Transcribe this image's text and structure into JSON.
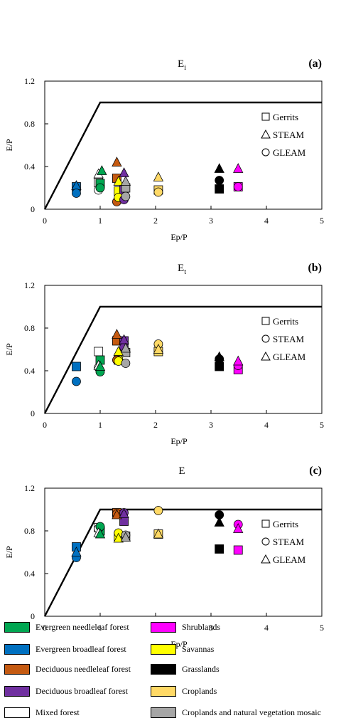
{
  "chart_data": [
    {
      "type": "scatter",
      "title": "Ei",
      "title_main": "E",
      "title_sub": "i",
      "panel_label": "(a)",
      "xlabel": "Ep/P",
      "ylabel": "E/P",
      "xlim": [
        0,
        5
      ],
      "ylim": [
        0,
        1.2
      ],
      "xticks": [
        "0",
        "1",
        "2",
        "3",
        "4",
        "5"
      ],
      "yticks": [
        "0",
        "0.4",
        "0.8",
        "1.2"
      ],
      "legend": [
        "Gerrits",
        "STEAM",
        "GLEAM"
      ],
      "legend_markers": [
        "square",
        "triangle",
        "circle"
      ],
      "series": [
        {
          "name": "Gerrits",
          "marker": "square",
          "points": [
            {
              "x": 0.57,
              "y": 0.21,
              "cover": "ebf"
            },
            {
              "x": 0.97,
              "y": 0.25,
              "cover": "mf"
            },
            {
              "x": 1.0,
              "y": 0.24,
              "cover": "enf"
            },
            {
              "x": 1.3,
              "y": 0.29,
              "cover": "dnf"
            },
            {
              "x": 1.33,
              "y": 0.17,
              "cover": "sav"
            },
            {
              "x": 1.43,
              "y": 0.18,
              "cover": "dbf"
            },
            {
              "x": 1.46,
              "y": 0.2,
              "cover": "cnv"
            },
            {
              "x": 2.05,
              "y": 0.18,
              "cover": "crop"
            },
            {
              "x": 3.15,
              "y": 0.19,
              "cover": "grass"
            },
            {
              "x": 3.49,
              "y": 0.21,
              "cover": "shrub"
            }
          ]
        },
        {
          "name": "STEAM",
          "marker": "triangle",
          "points": [
            {
              "x": 0.57,
              "y": 0.22,
              "cover": "ebf"
            },
            {
              "x": 0.97,
              "y": 0.33,
              "cover": "mf"
            },
            {
              "x": 1.03,
              "y": 0.36,
              "cover": "enf"
            },
            {
              "x": 1.3,
              "y": 0.44,
              "cover": "dnf"
            },
            {
              "x": 1.33,
              "y": 0.26,
              "cover": "sav"
            },
            {
              "x": 1.43,
              "y": 0.34,
              "cover": "dbf"
            },
            {
              "x": 1.46,
              "y": 0.26,
              "cover": "cnv"
            },
            {
              "x": 2.05,
              "y": 0.3,
              "cover": "crop"
            },
            {
              "x": 3.15,
              "y": 0.38,
              "cover": "grass"
            },
            {
              "x": 3.49,
              "y": 0.38,
              "cover": "shrub"
            }
          ]
        },
        {
          "name": "GLEAM",
          "marker": "circle",
          "points": [
            {
              "x": 0.57,
              "y": 0.15,
              "cover": "ebf"
            },
            {
              "x": 0.97,
              "y": 0.18,
              "cover": "mf"
            },
            {
              "x": 1.0,
              "y": 0.2,
              "cover": "enf"
            },
            {
              "x": 1.3,
              "y": 0.07,
              "cover": "dnf"
            },
            {
              "x": 1.33,
              "y": 0.11,
              "cover": "sav"
            },
            {
              "x": 1.43,
              "y": 0.09,
              "cover": "dbf"
            },
            {
              "x": 1.46,
              "y": 0.12,
              "cover": "cnv"
            },
            {
              "x": 2.05,
              "y": 0.16,
              "cover": "crop"
            },
            {
              "x": 3.15,
              "y": 0.27,
              "cover": "grass"
            },
            {
              "x": 3.49,
              "y": 0.21,
              "cover": "shrub"
            }
          ]
        }
      ],
      "budyko_line": [
        [
          0,
          0
        ],
        [
          1,
          1
        ],
        [
          5,
          1
        ]
      ]
    },
    {
      "type": "scatter",
      "title": "Et",
      "title_main": "E",
      "title_sub": "t",
      "panel_label": "(b)",
      "xlabel": "Ep/P",
      "ylabel": "E/P",
      "xlim": [
        0,
        5
      ],
      "ylim": [
        0,
        1.2
      ],
      "xticks": [
        "0",
        "1",
        "2",
        "3",
        "4",
        "5"
      ],
      "yticks": [
        "0",
        "0.4",
        "0.8",
        "1.2"
      ],
      "legend": [
        "Gerrits",
        "STEAM",
        "GLEAM"
      ],
      "legend_markers": [
        "square",
        "circle",
        "triangle"
      ],
      "series": [
        {
          "name": "Gerrits",
          "marker": "square",
          "points": [
            {
              "x": 0.57,
              "y": 0.44,
              "cover": "ebf"
            },
            {
              "x": 0.97,
              "y": 0.58,
              "cover": "mf"
            },
            {
              "x": 1.0,
              "y": 0.5,
              "cover": "enf"
            },
            {
              "x": 1.3,
              "y": 0.68,
              "cover": "dnf"
            },
            {
              "x": 1.33,
              "y": 0.5,
              "cover": "sav"
            },
            {
              "x": 1.43,
              "y": 0.68,
              "cover": "dbf"
            },
            {
              "x": 1.46,
              "y": 0.57,
              "cover": "cnv"
            },
            {
              "x": 2.05,
              "y": 0.58,
              "cover": "crop"
            },
            {
              "x": 3.15,
              "y": 0.44,
              "cover": "grass"
            },
            {
              "x": 3.49,
              "y": 0.41,
              "cover": "shrub"
            }
          ]
        },
        {
          "name": "STEAM",
          "marker": "circle",
          "points": [
            {
              "x": 0.57,
              "y": 0.3,
              "cover": "ebf"
            },
            {
              "x": 0.97,
              "y": 0.43,
              "cover": "mf"
            },
            {
              "x": 1.0,
              "y": 0.39,
              "cover": "enf"
            },
            {
              "x": 1.3,
              "y": 0.5,
              "cover": "dnf"
            },
            {
              "x": 1.33,
              "y": 0.49,
              "cover": "sav"
            },
            {
              "x": 1.43,
              "y": 0.62,
              "cover": "dbf"
            },
            {
              "x": 1.46,
              "y": 0.47,
              "cover": "cnv"
            },
            {
              "x": 2.05,
              "y": 0.65,
              "cover": "crop"
            },
            {
              "x": 3.15,
              "y": 0.51,
              "cover": "grass"
            },
            {
              "x": 3.49,
              "y": 0.45,
              "cover": "shrub"
            }
          ]
        },
        {
          "name": "GLEAM",
          "marker": "triangle",
          "points": [
            {
              "x": 0.97,
              "y": 0.45,
              "cover": "mf"
            },
            {
              "x": 1.0,
              "y": 0.44,
              "cover": "enf"
            },
            {
              "x": 1.3,
              "y": 0.74,
              "cover": "dnf"
            },
            {
              "x": 1.33,
              "y": 0.58,
              "cover": "sav"
            },
            {
              "x": 1.43,
              "y": 0.69,
              "cover": "dbf"
            },
            {
              "x": 1.46,
              "y": 0.61,
              "cover": "cnv"
            },
            {
              "x": 2.05,
              "y": 0.6,
              "cover": "crop"
            },
            {
              "x": 3.15,
              "y": 0.53,
              "cover": "grass"
            },
            {
              "x": 3.49,
              "y": 0.49,
              "cover": "shrub"
            }
          ]
        }
      ],
      "budyko_line": [
        [
          0,
          0
        ],
        [
          1,
          1
        ],
        [
          5,
          1
        ]
      ]
    },
    {
      "type": "scatter",
      "title": "E",
      "title_main": "E",
      "title_sub": "",
      "panel_label": "(c)",
      "xlabel": "Ep/P",
      "ylabel": "E/P",
      "xlim": [
        0,
        5
      ],
      "ylim": [
        0,
        1.2
      ],
      "xticks": [
        "0",
        "1",
        "2",
        "3",
        "4",
        "5"
      ],
      "yticks": [
        "0",
        "0.4",
        "0.8",
        "1.2"
      ],
      "legend": [
        "Gerrits",
        "STEAM",
        "GLEAM"
      ],
      "legend_markers": [
        "square",
        "circle",
        "triangle"
      ],
      "series": [
        {
          "name": "Gerrits",
          "marker": "square",
          "points": [
            {
              "x": 0.57,
              "y": 0.65,
              "cover": "ebf"
            },
            {
              "x": 0.97,
              "y": 0.83,
              "cover": "mf"
            },
            {
              "x": 1.0,
              "y": 0.8,
              "cover": "enf"
            },
            {
              "x": 1.3,
              "y": 0.97,
              "cover": "dnf"
            },
            {
              "x": 1.33,
              "y": 0.75,
              "cover": "sav"
            },
            {
              "x": 1.43,
              "y": 0.89,
              "cover": "dbf"
            },
            {
              "x": 1.46,
              "y": 0.75,
              "cover": "cnv"
            },
            {
              "x": 2.05,
              "y": 0.77,
              "cover": "crop"
            },
            {
              "x": 3.15,
              "y": 0.63,
              "cover": "grass"
            },
            {
              "x": 3.49,
              "y": 0.62,
              "cover": "shrub"
            }
          ]
        },
        {
          "name": "STEAM",
          "marker": "circle",
          "points": [
            {
              "x": 0.57,
              "y": 0.55,
              "cover": "ebf"
            },
            {
              "x": 0.97,
              "y": 0.82,
              "cover": "mf"
            },
            {
              "x": 1.0,
              "y": 0.84,
              "cover": "enf"
            },
            {
              "x": 1.3,
              "y": 0.96,
              "cover": "dnf"
            },
            {
              "x": 1.33,
              "y": 0.78,
              "cover": "sav"
            },
            {
              "x": 1.43,
              "y": 0.97,
              "cover": "dbf"
            },
            {
              "x": 1.46,
              "y": 0.76,
              "cover": "cnv"
            },
            {
              "x": 2.05,
              "y": 0.99,
              "cover": "crop"
            },
            {
              "x": 3.15,
              "y": 0.95,
              "cover": "grass"
            },
            {
              "x": 3.49,
              "y": 0.86,
              "cover": "shrub"
            }
          ]
        },
        {
          "name": "GLEAM",
          "marker": "triangle",
          "points": [
            {
              "x": 0.57,
              "y": 0.6,
              "cover": "ebf"
            },
            {
              "x": 0.97,
              "y": 0.78,
              "cover": "mf"
            },
            {
              "x": 1.0,
              "y": 0.77,
              "cover": "enf"
            },
            {
              "x": 1.3,
              "y": 0.95,
              "cover": "dnf"
            },
            {
              "x": 1.33,
              "y": 0.73,
              "cover": "sav"
            },
            {
              "x": 1.43,
              "y": 0.96,
              "cover": "dbf"
            },
            {
              "x": 1.46,
              "y": 0.74,
              "cover": "cnv"
            },
            {
              "x": 2.05,
              "y": 0.77,
              "cover": "crop"
            },
            {
              "x": 3.15,
              "y": 0.88,
              "cover": "grass"
            },
            {
              "x": 3.49,
              "y": 0.82,
              "cover": "shrub"
            }
          ]
        }
      ],
      "budyko_line": [
        [
          0,
          0
        ],
        [
          1,
          1
        ],
        [
          5,
          1
        ]
      ]
    }
  ],
  "land_cover_legend": [
    {
      "key": "enf",
      "label": "Evergreen needleleaf forest",
      "color": "#00a651"
    },
    {
      "key": "shrub",
      "label": "Shrublands",
      "color": "#ff00ff"
    },
    {
      "key": "ebf",
      "label": "Evergreen broadleaf forest",
      "color": "#0070c0"
    },
    {
      "key": "sav",
      "label": "Savannas",
      "color": "#ffff00"
    },
    {
      "key": "dnf",
      "label": "Deciduous needleleaf forest",
      "color": "#c55a11"
    },
    {
      "key": "grass",
      "label": "Grasslands",
      "color": "#000000"
    },
    {
      "key": "dbf",
      "label": "Deciduous broadleaf forest",
      "color": "#7030a0"
    },
    {
      "key": "crop",
      "label": "Croplands",
      "color": "#ffd966"
    },
    {
      "key": "mf",
      "label": "Mixed forest",
      "color": "#ffffff"
    },
    {
      "key": "cnv",
      "label": "Croplands and natural vegetation mosaic",
      "color": "#a6a6a6"
    }
  ]
}
